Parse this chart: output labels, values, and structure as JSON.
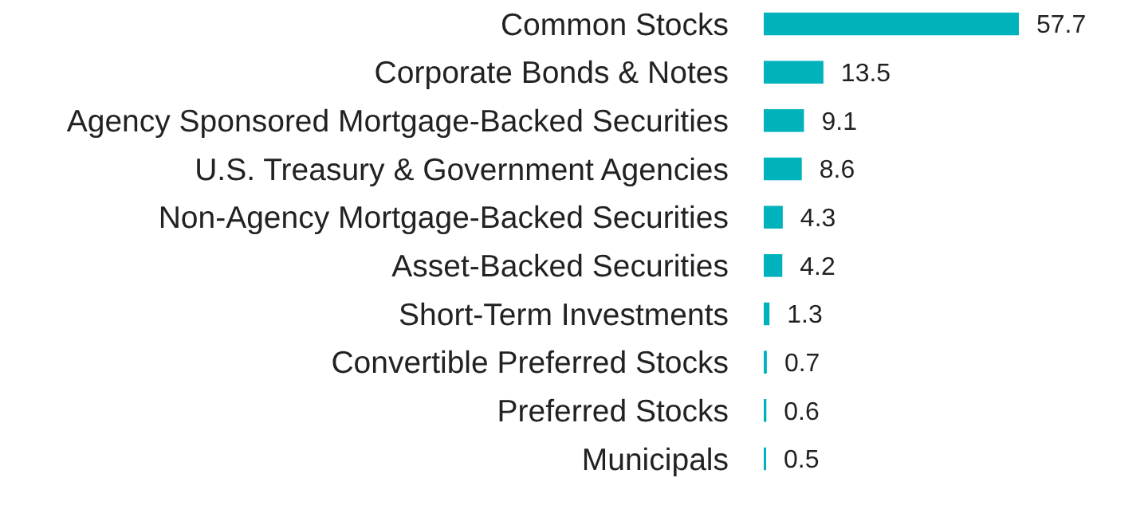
{
  "chart_data": {
    "type": "bar",
    "orientation": "horizontal",
    "categories": [
      "Common Stocks",
      "Corporate Bonds & Notes",
      "Agency Sponsored Mortgage-Backed Securities",
      "U.S. Treasury & Government Agencies",
      "Non-Agency Mortgage-Backed Securities",
      "Asset-Backed Securities",
      "Short-Term Investments",
      "Convertible Preferred Stocks",
      "Preferred Stocks",
      "Municipals"
    ],
    "values": [
      57.7,
      13.5,
      9.1,
      8.6,
      4.3,
      4.2,
      1.3,
      0.7,
      0.6,
      0.5
    ],
    "color": "#00b2bb",
    "data_labels": true
  }
}
